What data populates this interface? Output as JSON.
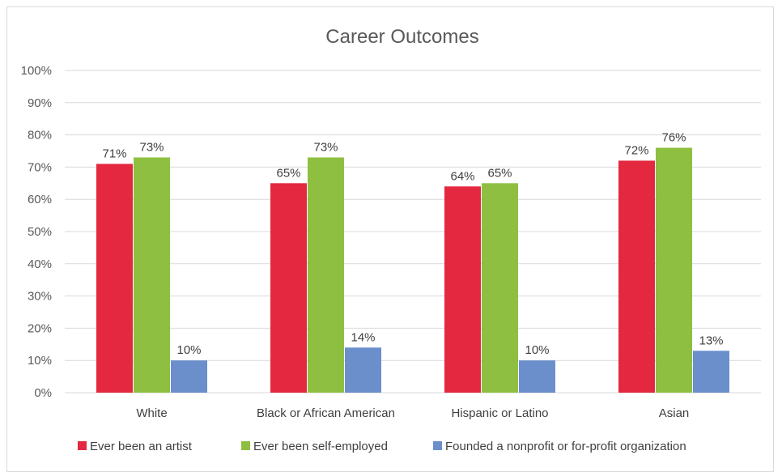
{
  "chart_data": {
    "type": "bar",
    "title": "Career Outcomes",
    "categories": [
      "White",
      "Black or African American",
      "Hispanic or Latino",
      "Asian"
    ],
    "series": [
      {
        "name": "Ever been an artist",
        "color": "#e3283f",
        "values": [
          71,
          65,
          64,
          72
        ],
        "labels": [
          "71%",
          "65%",
          "64%",
          "72%"
        ]
      },
      {
        "name": "Ever been self-employed",
        "color": "#8fbf41",
        "values": [
          73,
          73,
          65,
          76
        ],
        "labels": [
          "73%",
          "73%",
          "65%",
          "76%"
        ]
      },
      {
        "name": "Founded a nonprofit or for-profit organization",
        "color": "#6a8fcb",
        "values": [
          10,
          14,
          10,
          13
        ],
        "labels": [
          "10%",
          "14%",
          "10%",
          "13%"
        ]
      }
    ],
    "yticks": [
      "0%",
      "10%",
      "20%",
      "30%",
      "40%",
      "50%",
      "60%",
      "70%",
      "80%",
      "90%",
      "100%"
    ],
    "ylim": [
      0,
      100
    ],
    "grid": true,
    "legend_position": "bottom"
  }
}
